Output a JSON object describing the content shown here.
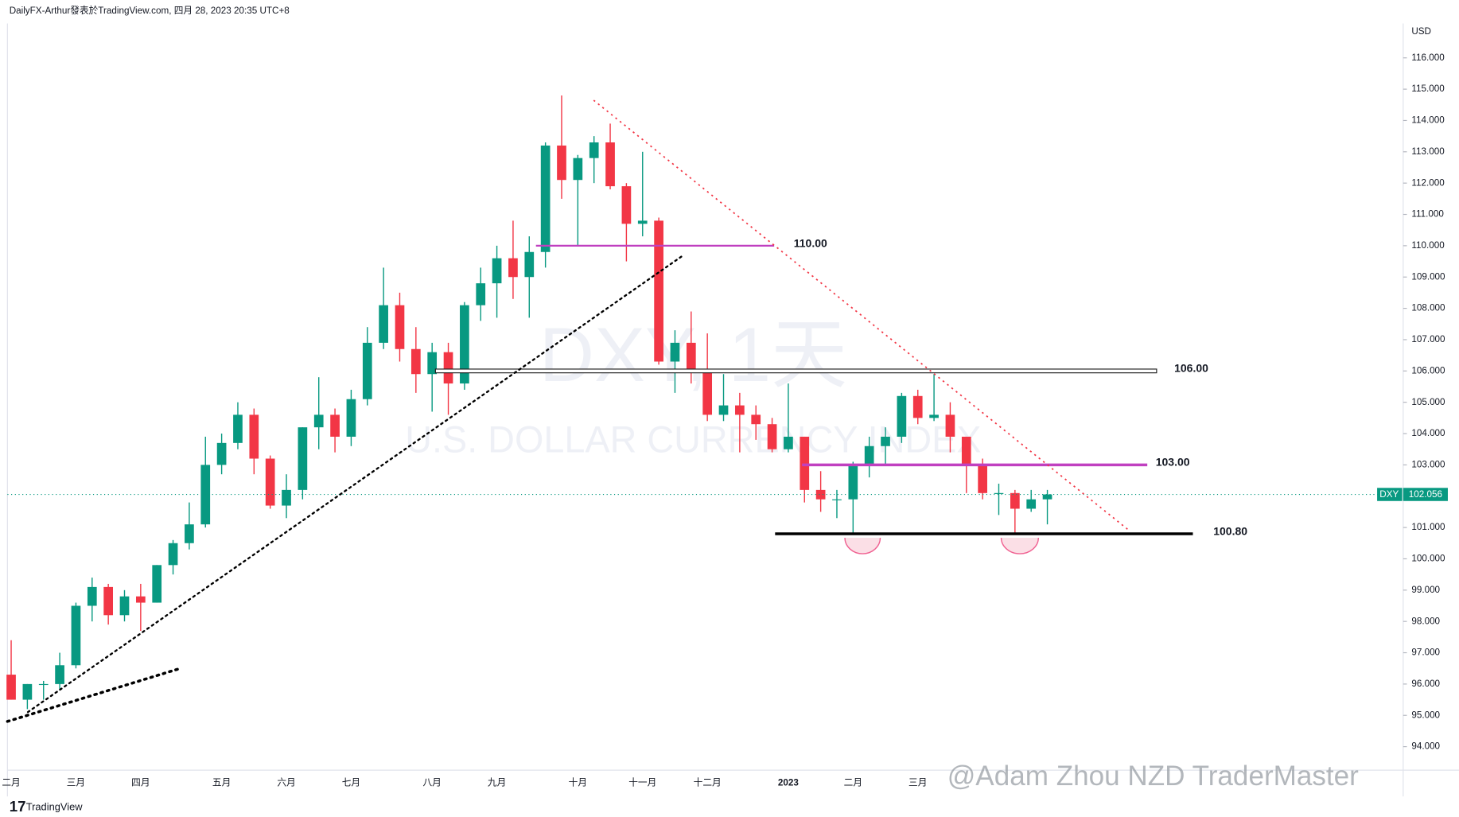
{
  "chart_data": {
    "type": "candlestick",
    "header": "DailyFX-Arthur發表於TradingView.com, 四月 28, 2023 20:35 UTC+8",
    "watermark_title": "DXY, 1天",
    "watermark_subtitle": "U.S. DOLLAR CURRENCY INDEX",
    "author_mark": "@Adam Zhou NZD TraderMaster",
    "footer": "TradingView",
    "currency": "USD",
    "symbol": "DXY",
    "last_price": {
      "value": 102.056,
      "label": "102.056"
    },
    "up_color": "#089981",
    "down_color": "#f23645",
    "ylim": [
      93.25,
      117.1
    ],
    "yticks": [
      {
        "value": 94,
        "label": "94.000"
      },
      {
        "value": 95,
        "label": "95.000"
      },
      {
        "value": 96,
        "label": "96.000"
      },
      {
        "value": 97,
        "label": "97.000"
      },
      {
        "value": 98,
        "label": "98.000"
      },
      {
        "value": 99,
        "label": "99.000"
      },
      {
        "value": 100,
        "label": "100.000"
      },
      {
        "value": 101,
        "label": "101.000"
      },
      {
        "value": 102,
        "label": "102.000"
      },
      {
        "value": 103,
        "label": "103.000"
      },
      {
        "value": 104,
        "label": "104.000"
      },
      {
        "value": 105,
        "label": "105.000"
      },
      {
        "value": 106,
        "label": "106.000"
      },
      {
        "value": 107,
        "label": "107.000"
      },
      {
        "value": 108,
        "label": "108.000"
      },
      {
        "value": 109,
        "label": "109.000"
      },
      {
        "value": 110,
        "label": "110.000"
      },
      {
        "value": 111,
        "label": "111.000"
      },
      {
        "value": 112,
        "label": "112.000"
      },
      {
        "value": 113,
        "label": "113.000"
      },
      {
        "value": 114,
        "label": "114.000"
      },
      {
        "value": 115,
        "label": "115.000"
      },
      {
        "value": 116,
        "label": "116.000"
      }
    ],
    "levels": [
      {
        "value": 110,
        "label": "110.00",
        "color": "#c040c0",
        "width": 2
      },
      {
        "value": 106,
        "label": "106.00",
        "color": "#222222",
        "width": 3
      },
      {
        "value": 103,
        "label": "103.00",
        "color": "#c040c0",
        "width": 3
      },
      {
        "value": 100.8,
        "label": "100.80",
        "color": "#000000",
        "width": 3
      }
    ],
    "categories": [
      "二月",
      null,
      null,
      null,
      "三月",
      null,
      null,
      null,
      "四月",
      null,
      null,
      null,
      null,
      "五月",
      null,
      null,
      null,
      "六月",
      null,
      null,
      null,
      "七月",
      null,
      null,
      null,
      null,
      "八月",
      null,
      null,
      null,
      "九月",
      null,
      null,
      null,
      null,
      "十月",
      null,
      null,
      null,
      "十一月",
      null,
      null,
      null,
      "十二月",
      null,
      null,
      null,
      null,
      "2023",
      null,
      null,
      null,
      "二月",
      null,
      null,
      null,
      "三月",
      null,
      null,
      null,
      null,
      null,
      null,
      null,
      null
    ],
    "ohlc": [
      [
        96.3,
        97.4,
        95.5,
        95.5
      ],
      [
        95.5,
        96.0,
        95.2,
        96.0
      ],
      [
        96.0,
        96.1,
        95.5,
        96.0
      ],
      [
        96.0,
        97.0,
        95.8,
        96.6
      ],
      [
        96.6,
        98.6,
        96.5,
        98.5
      ],
      [
        98.5,
        99.4,
        98.0,
        99.1
      ],
      [
        99.1,
        99.2,
        97.9,
        98.2
      ],
      [
        98.2,
        99.0,
        98.0,
        98.8
      ],
      [
        98.8,
        99.2,
        97.7,
        98.6
      ],
      [
        98.6,
        99.8,
        98.6,
        99.8
      ],
      [
        99.8,
        100.6,
        99.5,
        100.5
      ],
      [
        100.5,
        101.8,
        100.3,
        101.1
      ],
      [
        101.1,
        103.9,
        101.0,
        103.0
      ],
      [
        103.0,
        104.0,
        102.7,
        103.7
      ],
      [
        103.7,
        105.0,
        103.5,
        104.6
      ],
      [
        104.6,
        104.8,
        102.7,
        103.2
      ],
      [
        103.2,
        103.3,
        101.6,
        101.7
      ],
      [
        101.7,
        102.7,
        101.3,
        102.2
      ],
      [
        102.2,
        104.2,
        101.9,
        104.2
      ],
      [
        104.2,
        105.8,
        103.5,
        104.6
      ],
      [
        104.6,
        104.8,
        103.4,
        103.9
      ],
      [
        103.9,
        105.4,
        103.6,
        105.1
      ],
      [
        105.1,
        107.4,
        104.9,
        106.9
      ],
      [
        106.9,
        109.3,
        106.7,
        108.1
      ],
      [
        108.1,
        108.5,
        106.3,
        106.7
      ],
      [
        106.7,
        107.4,
        105.3,
        105.9
      ],
      [
        105.9,
        106.9,
        104.7,
        106.6
      ],
      [
        106.6,
        106.9,
        104.6,
        105.6
      ],
      [
        105.6,
        108.2,
        105.4,
        108.1
      ],
      [
        108.1,
        109.3,
        107.6,
        108.8
      ],
      [
        108.8,
        110.0,
        107.7,
        109.6
      ],
      [
        109.6,
        110.8,
        108.3,
        109.0
      ],
      [
        109.0,
        110.3,
        107.7,
        109.8
      ],
      [
        109.8,
        113.3,
        109.3,
        113.2
      ],
      [
        113.2,
        114.8,
        111.5,
        112.1
      ],
      [
        112.1,
        112.9,
        110.0,
        112.8
      ],
      [
        112.8,
        113.5,
        112.0,
        113.3
      ],
      [
        113.3,
        113.9,
        111.8,
        111.9
      ],
      [
        111.9,
        112.0,
        109.5,
        110.7
      ],
      [
        110.7,
        113.0,
        110.3,
        110.8
      ],
      [
        110.8,
        110.9,
        106.2,
        106.3
      ],
      [
        106.3,
        107.3,
        105.3,
        106.9
      ],
      [
        106.9,
        107.9,
        105.6,
        106.0
      ],
      [
        106.0,
        107.2,
        104.4,
        104.6
      ],
      [
        104.6,
        105.9,
        104.4,
        104.9
      ],
      [
        104.9,
        105.3,
        103.4,
        104.6
      ],
      [
        104.6,
        104.9,
        103.8,
        104.3
      ],
      [
        104.3,
        104.5,
        103.4,
        103.5
      ],
      [
        103.5,
        105.6,
        103.4,
        103.9
      ],
      [
        103.9,
        103.9,
        101.8,
        102.2
      ],
      [
        102.2,
        102.8,
        101.5,
        101.9
      ],
      [
        101.9,
        102.2,
        101.3,
        101.9
      ],
      [
        101.9,
        103.1,
        100.8,
        103.0
      ],
      [
        103.0,
        103.9,
        102.6,
        103.6
      ],
      [
        103.6,
        104.2,
        103.0,
        103.9
      ],
      [
        103.9,
        105.3,
        103.7,
        105.2
      ],
      [
        105.2,
        105.4,
        104.3,
        104.5
      ],
      [
        104.5,
        105.9,
        104.4,
        104.6
      ],
      [
        104.6,
        105.0,
        103.4,
        103.9
      ],
      [
        103.9,
        103.9,
        102.1,
        103.0
      ],
      [
        103.0,
        103.2,
        101.9,
        102.1
      ],
      [
        102.1,
        102.4,
        101.4,
        102.1
      ],
      [
        102.1,
        102.2,
        100.8,
        101.6
      ],
      [
        101.6,
        102.2,
        101.5,
        101.9
      ],
      [
        101.9,
        102.2,
        101.1,
        102.056
      ]
    ]
  }
}
